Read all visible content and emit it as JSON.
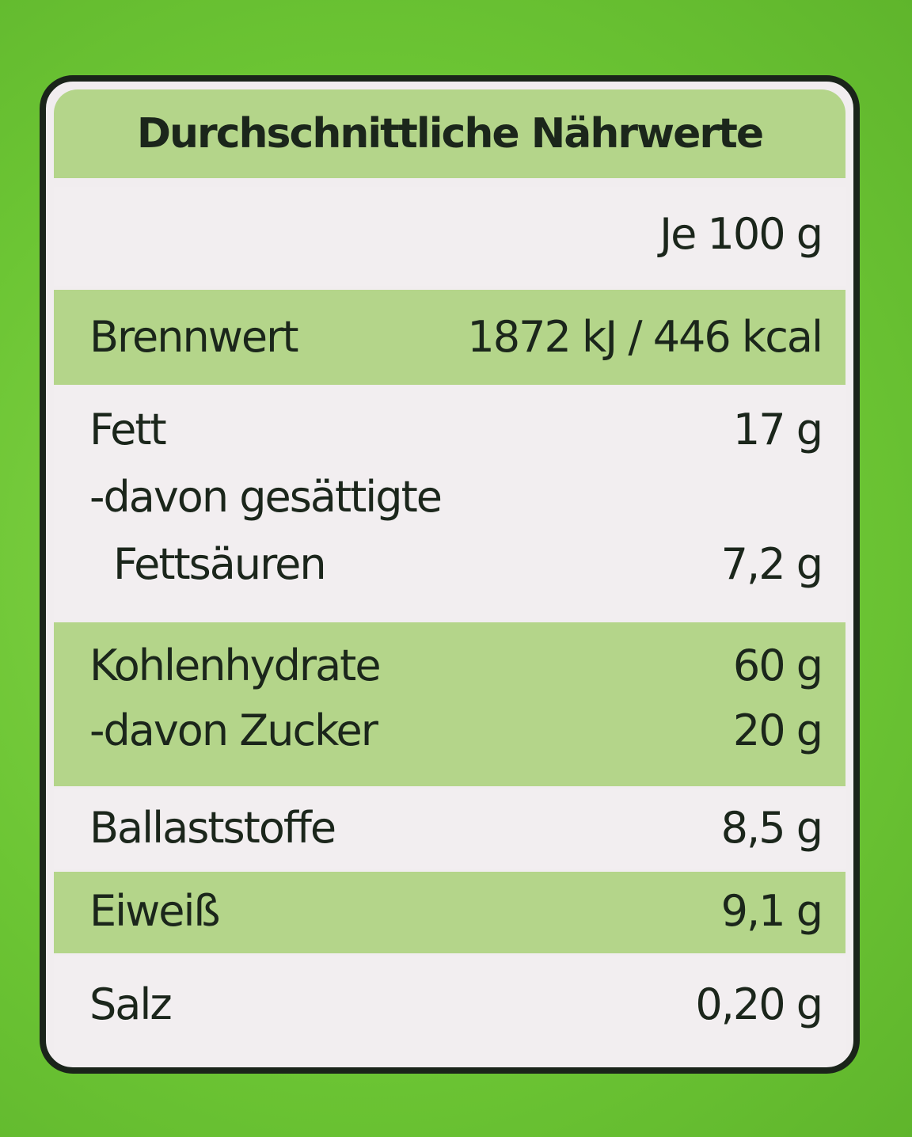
{
  "title": "Durchschnittliche Nährwerte",
  "header": "Je 100 g",
  "sections": [
    {
      "lines": [
        {
          "label": "Brennwert",
          "value": "1872 kJ / 446 kcal"
        }
      ]
    },
    {
      "lines": [
        {
          "label": "Fett",
          "value": "17 g"
        },
        {
          "label": "-davon gesättigte"
        },
        {
          "label": "Fettsäuren",
          "value": "7,2 g"
        }
      ]
    },
    {
      "lines": [
        {
          "label": "Kohlenhydrate",
          "value": "60 g"
        },
        {
          "label": "-davon Zucker",
          "value": "20 g"
        }
      ]
    },
    {
      "lines": [
        {
          "label": "Ballaststoffe",
          "value": "8,5 g"
        }
      ]
    },
    {
      "lines": [
        {
          "label": "Eiweiß",
          "value": "9,1 g"
        }
      ]
    },
    {
      "lines": [
        {
          "label": "Salz",
          "value": "0,20 g"
        }
      ]
    }
  ]
}
